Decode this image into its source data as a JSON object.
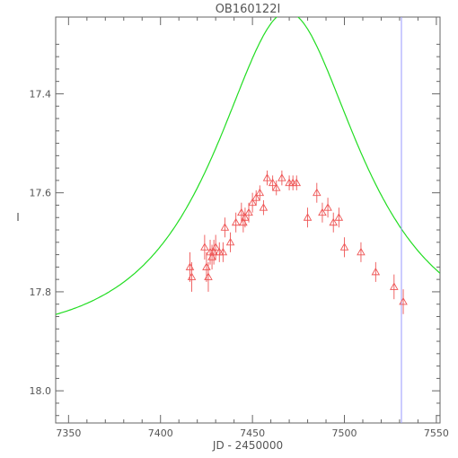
{
  "chart_data": {
    "type": "scatter",
    "title": "OB160122I",
    "xlabel": "JD - 2450000",
    "ylabel": "I",
    "xlim": [
      7343,
      7552
    ],
    "ylim": [
      18.065,
      17.245
    ],
    "y_inverted": true,
    "grid": false,
    "xticks": [
      7350,
      7400,
      7450,
      7500,
      7550
    ],
    "yticks": [
      17.4,
      17.6,
      17.8,
      18.0
    ],
    "xtick_labels": [
      "7350",
      "7400",
      "7450",
      "7500",
      "7550"
    ],
    "ytick_labels": [
      "17.4",
      "17.6",
      "17.8",
      "18.0"
    ],
    "vline_x": 7531,
    "model": {
      "name": "",
      "t0": 7469.0,
      "u0": 0.62,
      "tE": 60.0,
      "fs": 1.0,
      "I_base": 17.895
    },
    "series": [
      {
        "points": [
          {
            "x": 7416,
            "y": 17.75,
            "err": 0.03
          },
          {
            "x": 7417,
            "y": 17.77,
            "err": 0.03
          },
          {
            "x": 7424,
            "y": 17.71,
            "err": 0.025
          },
          {
            "x": 7425,
            "y": 17.75,
            "err": 0.03
          },
          {
            "x": 7426,
            "y": 17.77,
            "err": 0.03
          },
          {
            "x": 7427,
            "y": 17.72,
            "err": 0.025
          },
          {
            "x": 7428,
            "y": 17.73,
            "err": 0.025
          },
          {
            "x": 7429,
            "y": 17.72,
            "err": 0.025
          },
          {
            "x": 7430,
            "y": 17.71,
            "err": 0.025
          },
          {
            "x": 7432,
            "y": 17.72,
            "err": 0.02
          },
          {
            "x": 7434,
            "y": 17.72,
            "err": 0.02
          },
          {
            "x": 7435,
            "y": 17.67,
            "err": 0.02
          },
          {
            "x": 7438,
            "y": 17.7,
            "err": 0.02
          },
          {
            "x": 7441,
            "y": 17.66,
            "err": 0.02
          },
          {
            "x": 7444,
            "y": 17.64,
            "err": 0.02
          },
          {
            "x": 7445,
            "y": 17.66,
            "err": 0.02
          },
          {
            "x": 7446,
            "y": 17.65,
            "err": 0.02
          },
          {
            "x": 7448,
            "y": 17.64,
            "err": 0.02
          },
          {
            "x": 7450,
            "y": 17.62,
            "err": 0.02
          },
          {
            "x": 7452,
            "y": 17.61,
            "err": 0.015
          },
          {
            "x": 7454,
            "y": 17.6,
            "err": 0.015
          },
          {
            "x": 7456,
            "y": 17.63,
            "err": 0.015
          },
          {
            "x": 7458,
            "y": 17.57,
            "err": 0.015
          },
          {
            "x": 7461,
            "y": 17.58,
            "err": 0.015
          },
          {
            "x": 7463,
            "y": 17.59,
            "err": 0.015
          },
          {
            "x": 7466,
            "y": 17.57,
            "err": 0.015
          },
          {
            "x": 7470,
            "y": 17.58,
            "err": 0.015
          },
          {
            "x": 7472,
            "y": 17.58,
            "err": 0.015
          },
          {
            "x": 7474,
            "y": 17.58,
            "err": 0.015
          },
          {
            "x": 7480,
            "y": 17.65,
            "err": 0.02
          },
          {
            "x": 7485,
            "y": 17.6,
            "err": 0.02
          },
          {
            "x": 7488,
            "y": 17.64,
            "err": 0.02
          },
          {
            "x": 7491,
            "y": 17.63,
            "err": 0.02
          },
          {
            "x": 7494,
            "y": 17.66,
            "err": 0.02
          },
          {
            "x": 7497,
            "y": 17.65,
            "err": 0.02
          },
          {
            "x": 7500,
            "y": 17.71,
            "err": 0.02
          },
          {
            "x": 7509,
            "y": 17.72,
            "err": 0.02
          },
          {
            "x": 7517,
            "y": 17.76,
            "err": 0.02
          },
          {
            "x": 7527,
            "y": 17.79,
            "err": 0.025
          },
          {
            "x": 7532,
            "y": 17.82,
            "err": 0.025
          }
        ]
      }
    ]
  },
  "colors": {
    "background": "#ffffff",
    "axes": "#666666",
    "text": "#555555",
    "model_line": "#22dd22",
    "data_marker": "#ee5555",
    "vline": "#9999ff"
  }
}
